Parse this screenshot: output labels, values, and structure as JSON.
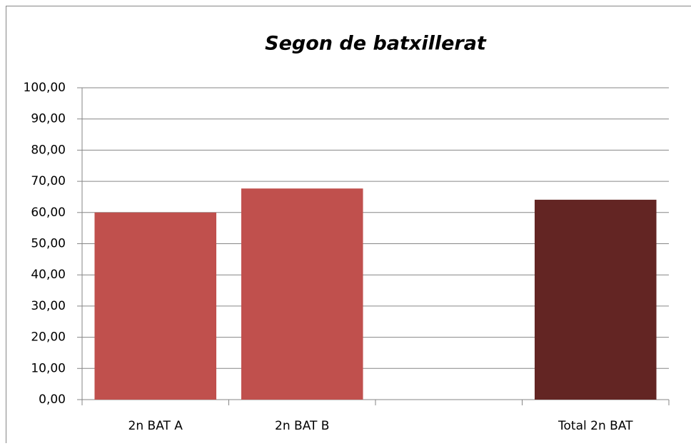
{
  "chart_data": {
    "type": "bar",
    "title": "Segon de batxillerat",
    "categories": [
      "2n BAT A",
      "2n BAT B",
      null,
      "Total 2n BAT"
    ],
    "values": [
      60,
      67.7,
      null,
      64.1
    ],
    "colors": [
      "#c0504d",
      "#c0504d",
      null,
      "#632523"
    ],
    "ylim": [
      0,
      100
    ],
    "yticks": [
      {
        "value": 0,
        "label": "0,00"
      },
      {
        "value": 10,
        "label": "10,00"
      },
      {
        "value": 20,
        "label": "20,00"
      },
      {
        "value": 30,
        "label": "30,00"
      },
      {
        "value": 40,
        "label": "40,00"
      },
      {
        "value": 50,
        "label": "50,00"
      },
      {
        "value": 60,
        "label": "60,00"
      },
      {
        "value": 70,
        "label": "70,00"
      },
      {
        "value": 80,
        "label": "80,00"
      },
      {
        "value": 90,
        "label": "90,00"
      },
      {
        "value": 100,
        "label": "100,00"
      }
    ],
    "grid": true
  }
}
